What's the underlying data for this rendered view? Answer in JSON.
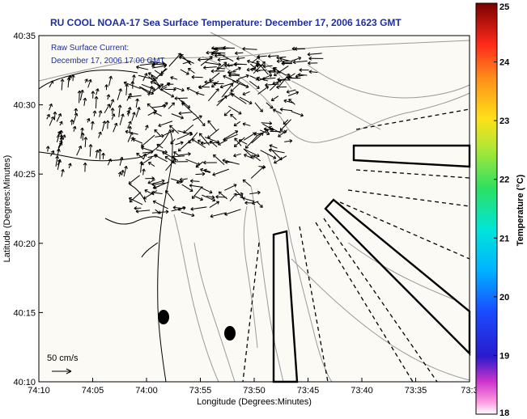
{
  "title": "RU COOL  NOAA-17  Sea Surface Temperature:  December 17, 2006 1623 GMT",
  "annotation": {
    "line1": "Raw Surface Current:",
    "line2": "December 17, 2006 17:00 GMT"
  },
  "scale_label": "50 cm/s",
  "x_axis": {
    "label": "Longitude (Degrees:Minutes)",
    "ticks": [
      "74:10",
      "74:05",
      "74:00",
      "73:55",
      "73:50",
      "73:45",
      "73:40",
      "73:35",
      "73:3"
    ]
  },
  "y_axis": {
    "label": "Latitude (Degrees:Minutes)",
    "ticks": [
      "40:35",
      "40:30",
      "40:25",
      "40:20",
      "40:15",
      "40:10"
    ]
  },
  "colorbar": {
    "label": "Temperature (°C)",
    "ticks": [
      "25",
      "24",
      "23",
      "22",
      "21",
      "20",
      "19",
      "18"
    ],
    "min": 18,
    "max": 25
  },
  "colors": {
    "title": "#1f2f9e",
    "annotation": "#1f2f9e",
    "contour": "#9a9a9a",
    "land_fill": "#f8f7f1"
  }
}
